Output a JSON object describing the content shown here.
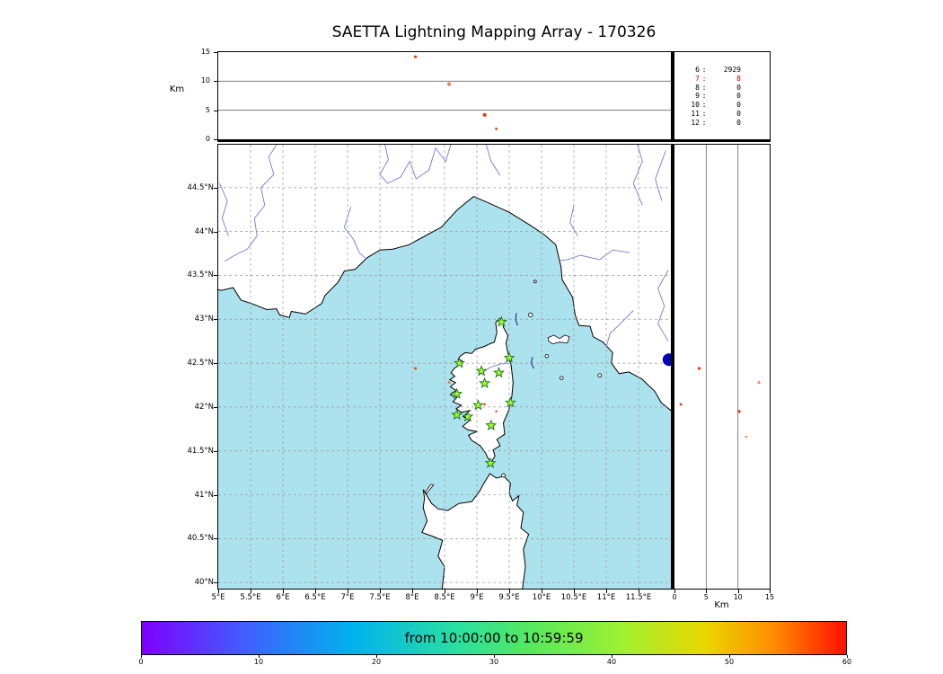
{
  "title": "SAETTA Lightning Mapping Array - 170326",
  "colors": {
    "sea": "#ACE2EE",
    "land": "#FFFFFF",
    "coast": "#000000",
    "river": "#7878D8",
    "grid": "#999999",
    "station_fill": "#A0FB2E",
    "station_edge": "#1E701E"
  },
  "axes": {
    "alt_label": "Km",
    "alt_ticks": [
      0,
      5,
      10,
      15
    ],
    "lon_ticks": [
      {
        "v": 5,
        "t": "5°E"
      },
      {
        "v": 5.5,
        "t": "5.5°E"
      },
      {
        "v": 6,
        "t": "6°E"
      },
      {
        "v": 6.5,
        "t": "6.5°E"
      },
      {
        "v": 7,
        "t": "7°E"
      },
      {
        "v": 7.5,
        "t": "7.5°E"
      },
      {
        "v": 8,
        "t": "8°E"
      },
      {
        "v": 8.5,
        "t": "8.5°E"
      },
      {
        "v": 9,
        "t": "9°E"
      },
      {
        "v": 9.5,
        "t": "9.5°E"
      },
      {
        "v": 10,
        "t": "10°E"
      },
      {
        "v": 10.5,
        "t": "10.5°E"
      },
      {
        "v": 11,
        "t": "11°E"
      },
      {
        "v": 11.5,
        "t": "11.5°E"
      }
    ],
    "lat_ticks": [
      {
        "v": 40,
        "t": "40°N"
      },
      {
        "v": 40.5,
        "t": "40.5°N"
      },
      {
        "v": 41,
        "t": "41°N"
      },
      {
        "v": 41.5,
        "t": "41.5°N"
      },
      {
        "v": 42,
        "t": "42°N"
      },
      {
        "v": 42.5,
        "t": "42.5°N"
      },
      {
        "v": 43,
        "t": "43°N"
      },
      {
        "v": 43.5,
        "t": "43.5°N"
      },
      {
        "v": 44,
        "t": "44°N"
      },
      {
        "v": 44.5,
        "t": "44.5°N"
      }
    ]
  },
  "chart_data": [
    {
      "type": "scatter",
      "id": "alt_lon",
      "title": "altitude (km) vs longitude",
      "ylabel": "Km",
      "x_range": [
        5,
        12
      ],
      "y_range": [
        0,
        15
      ],
      "y_ticks": [
        0,
        5,
        10,
        15
      ],
      "gridlines_y": [
        5,
        10
      ],
      "points": [
        {
          "lon": 8.05,
          "alt": 14.2,
          "color": "#EE3311",
          "r": 1.6
        },
        {
          "lon": 8.57,
          "alt": 9.5,
          "color": "#FF7744",
          "r": 2.0
        },
        {
          "lon": 9.12,
          "alt": 4.2,
          "color": "#EE3311",
          "r": 2.0
        },
        {
          "lon": 9.3,
          "alt": 1.8,
          "color": "#EE3311",
          "r": 1.4
        }
      ]
    },
    {
      "type": "scatter",
      "id": "map",
      "title": "plan view map (Corsica region)",
      "x_range": [
        5,
        12
      ],
      "y_range": [
        39.93,
        44.99
      ],
      "grid": "dashed 0.5 degree",
      "stations": [
        [
          9.38,
          42.97
        ],
        [
          9.5,
          42.56
        ],
        [
          8.73,
          42.5
        ],
        [
          9.07,
          42.41
        ],
        [
          9.34,
          42.39
        ],
        [
          9.12,
          42.27
        ],
        [
          8.69,
          42.15
        ],
        [
          9.52,
          42.05
        ],
        [
          9.02,
          42.02
        ],
        [
          8.69,
          41.91
        ],
        [
          8.86,
          41.89
        ],
        [
          9.22,
          41.79
        ],
        [
          9.21,
          41.36
        ]
      ],
      "sources": [
        {
          "lon": 8.05,
          "lat": 42.44,
          "color": "#EE3311",
          "r": 1.4
        },
        {
          "lon": 8.57,
          "lat": 42.28,
          "color": "#FF7744",
          "r": 1.4
        },
        {
          "lon": 9.12,
          "lat": 42.03,
          "color": "#EE3311",
          "r": 1.2
        },
        {
          "lon": 9.3,
          "lat": 41.95,
          "color": "#EE3311",
          "r": 1.2
        }
      ],
      "streaks": [
        {
          "color": "#333399",
          "pts": [
            [
              9.61,
              43.07
            ],
            [
              9.6,
              42.99
            ],
            [
              9.63,
              42.93
            ]
          ]
        },
        {
          "color": "#333399",
          "pts": [
            [
              9.86,
              42.57
            ],
            [
              9.84,
              42.5
            ],
            [
              9.88,
              42.44
            ]
          ]
        }
      ],
      "blue_marker": {
        "lon": 11.97,
        "lat": 42.54,
        "r": 7,
        "color": "#0000BB"
      }
    },
    {
      "type": "scatter",
      "id": "alt_lat",
      "title": "altitude (km) vs latitude",
      "xlabel": "Km",
      "x_range": [
        0,
        15
      ],
      "x_ticks": [
        0,
        5,
        10,
        15
      ],
      "gridlines_x": [
        5,
        10
      ],
      "points": [
        {
          "alt": 3.9,
          "lat": 42.44,
          "color": "#EE3311",
          "r": 1.6
        },
        {
          "alt": 13.3,
          "lat": 42.28,
          "color": "#FF8866",
          "r": 1.6
        },
        {
          "alt": 1.0,
          "lat": 42.03,
          "color": "#EE3311",
          "r": 1.4
        },
        {
          "alt": 10.2,
          "lat": 41.95,
          "color": "#EE3311",
          "r": 1.6
        },
        {
          "alt": 11.3,
          "lat": 41.66,
          "color": "#FF6644",
          "r": 1.2
        }
      ]
    },
    {
      "type": "table",
      "id": "counts",
      "title": "counts per altitude bin",
      "rows": [
        {
          "k": "6",
          "v": "2929",
          "red": false
        },
        {
          "k": "7",
          "v": "8",
          "red": true
        },
        {
          "k": "8",
          "v": "0",
          "red": false
        },
        {
          "k": "9",
          "v": "0",
          "red": false
        },
        {
          "k": "10",
          "v": "0",
          "red": false
        },
        {
          "k": "11",
          "v": "0",
          "red": false
        },
        {
          "k": "12",
          "v": "0",
          "red": false
        }
      ]
    },
    {
      "type": "colorbar",
      "id": "time_colorbar",
      "label": "from 10:00:00 to 10:59:59",
      "range": [
        0,
        60
      ],
      "ticks": [
        0,
        10,
        20,
        30,
        40,
        50,
        60
      ],
      "stops": [
        {
          "c": "#7F00FF",
          "p": 0
        },
        {
          "c": "#3F60FF",
          "p": 15
        },
        {
          "c": "#00B2EE",
          "p": 30
        },
        {
          "c": "#2BE0A0",
          "p": 45
        },
        {
          "c": "#55E860",
          "p": 55
        },
        {
          "c": "#9EF032",
          "p": 68
        },
        {
          "c": "#E8D800",
          "p": 80
        },
        {
          "c": "#FF8A00",
          "p": 90
        },
        {
          "c": "#FF1000",
          "p": 100
        }
      ]
    }
  ],
  "geo": {
    "mainland": [
      [
        4.9,
        43.35
      ],
      [
        5.05,
        43.33
      ],
      [
        5.23,
        43.36
      ],
      [
        5.35,
        43.22
      ],
      [
        5.55,
        43.17
      ],
      [
        5.75,
        43.11
      ],
      [
        5.9,
        43.12
      ],
      [
        5.95,
        43.05
      ],
      [
        6.1,
        43.02
      ],
      [
        6.13,
        43.09
      ],
      [
        6.35,
        43.06
      ],
      [
        6.6,
        43.18
      ],
      [
        6.65,
        43.27
      ],
      [
        6.85,
        43.42
      ],
      [
        6.95,
        43.55
      ],
      [
        7.12,
        43.57
      ],
      [
        7.3,
        43.7
      ],
      [
        7.5,
        43.79
      ],
      [
        7.7,
        43.8
      ],
      [
        7.95,
        43.85
      ],
      [
        8.2,
        43.95
      ],
      [
        8.45,
        44.05
      ],
      [
        8.7,
        44.25
      ],
      [
        8.95,
        44.4
      ],
      [
        9.2,
        44.32
      ],
      [
        9.5,
        44.22
      ],
      [
        9.85,
        44.06
      ],
      [
        10.05,
        43.96
      ],
      [
        10.22,
        43.85
      ],
      [
        10.3,
        43.6
      ],
      [
        10.32,
        43.45
      ],
      [
        10.48,
        43.25
      ],
      [
        10.52,
        43.05
      ],
      [
        10.58,
        42.93
      ],
      [
        10.75,
        42.92
      ],
      [
        10.8,
        42.8
      ],
      [
        10.95,
        42.74
      ],
      [
        11.1,
        42.62
      ],
      [
        11.08,
        42.5
      ],
      [
        11.2,
        42.38
      ],
      [
        11.35,
        42.4
      ],
      [
        11.55,
        42.32
      ],
      [
        11.75,
        42.18
      ],
      [
        11.85,
        42.05
      ],
      [
        12.1,
        41.9
      ],
      [
        12.35,
        41.78
      ],
      [
        12.35,
        45.3
      ],
      [
        4.9,
        45.3
      ]
    ],
    "corsica": [
      [
        9.35,
        43.01
      ],
      [
        9.29,
        42.96
      ],
      [
        9.31,
        42.85
      ],
      [
        9.27,
        42.74
      ],
      [
        9.2,
        42.72
      ],
      [
        9.12,
        42.69
      ],
      [
        8.98,
        42.66
      ],
      [
        8.92,
        42.61
      ],
      [
        8.82,
        42.62
      ],
      [
        8.74,
        42.58
      ],
      [
        8.71,
        42.54
      ],
      [
        8.77,
        42.53
      ],
      [
        8.73,
        42.48
      ],
      [
        8.65,
        42.44
      ],
      [
        8.6,
        42.39
      ],
      [
        8.66,
        42.35
      ],
      [
        8.58,
        42.31
      ],
      [
        8.67,
        42.28
      ],
      [
        8.59,
        42.23
      ],
      [
        8.68,
        42.19
      ],
      [
        8.59,
        42.14
      ],
      [
        8.69,
        42.11
      ],
      [
        8.63,
        42.06
      ],
      [
        8.76,
        42.02
      ],
      [
        8.68,
        41.98
      ],
      [
        8.76,
        41.94
      ],
      [
        8.89,
        41.96
      ],
      [
        8.79,
        41.89
      ],
      [
        8.89,
        41.85
      ],
      [
        8.78,
        41.78
      ],
      [
        8.86,
        41.74
      ],
      [
        9.0,
        41.72
      ],
      [
        8.87,
        41.68
      ],
      [
        8.92,
        41.62
      ],
      [
        9.05,
        41.56
      ],
      [
        9.13,
        41.48
      ],
      [
        9.17,
        41.42
      ],
      [
        9.22,
        41.37
      ],
      [
        9.28,
        41.44
      ],
      [
        9.25,
        41.51
      ],
      [
        9.36,
        41.56
      ],
      [
        9.31,
        41.63
      ],
      [
        9.43,
        41.69
      ],
      [
        9.41,
        41.82
      ],
      [
        9.49,
        41.96
      ],
      [
        9.54,
        42.12
      ],
      [
        9.56,
        42.28
      ],
      [
        9.53,
        42.47
      ],
      [
        9.47,
        42.65
      ],
      [
        9.45,
        42.73
      ],
      [
        9.48,
        42.81
      ],
      [
        9.41,
        42.91
      ],
      [
        9.4,
        42.98
      ]
    ],
    "sardinia": [
      [
        8.46,
        39.9
      ],
      [
        8.5,
        40.18
      ],
      [
        8.4,
        40.3
      ],
      [
        8.47,
        40.48
      ],
      [
        8.3,
        40.53
      ],
      [
        8.15,
        40.57
      ],
      [
        8.23,
        40.7
      ],
      [
        8.17,
        40.85
      ],
      [
        8.19,
        40.96
      ],
      [
        8.17,
        41.06
      ],
      [
        8.3,
        40.9
      ],
      [
        8.4,
        40.84
      ],
      [
        8.55,
        40.82
      ],
      [
        8.72,
        40.9
      ],
      [
        8.92,
        40.92
      ],
      [
        9.05,
        41.05
      ],
      [
        9.1,
        41.12
      ],
      [
        9.2,
        41.24
      ],
      [
        9.3,
        41.19
      ],
      [
        9.42,
        41.21
      ],
      [
        9.52,
        41.13
      ],
      [
        9.5,
        41.02
      ],
      [
        9.55,
        40.93
      ],
      [
        9.65,
        40.99
      ],
      [
        9.62,
        40.88
      ],
      [
        9.72,
        40.8
      ],
      [
        9.68,
        40.62
      ],
      [
        9.8,
        40.55
      ],
      [
        9.72,
        40.38
      ],
      [
        9.75,
        40.18
      ],
      [
        9.7,
        39.9
      ]
    ],
    "islands": [
      {
        "name": "elba",
        "pts": [
          [
            10.1,
            42.79
          ],
          [
            10.19,
            42.82
          ],
          [
            10.28,
            42.78
          ],
          [
            10.36,
            42.82
          ],
          [
            10.43,
            42.8
          ],
          [
            10.4,
            42.73
          ],
          [
            10.28,
            42.74
          ],
          [
            10.17,
            42.72
          ],
          [
            10.11,
            42.75
          ]
        ]
      },
      {
        "name": "asinara",
        "pts": [
          [
            8.22,
            41.01
          ],
          [
            8.27,
            41.06
          ],
          [
            8.33,
            41.11
          ],
          [
            8.29,
            41.12
          ],
          [
            8.24,
            41.07
          ],
          [
            8.2,
            41.03
          ]
        ]
      },
      {
        "name": "capraia",
        "c": [
          9.83,
          43.05
        ],
        "r": 2.2
      },
      {
        "name": "gorgona",
        "c": [
          9.9,
          43.43
        ],
        "r": 1.5
      },
      {
        "name": "pianosa",
        "c": [
          10.08,
          42.58
        ],
        "r": 1.8
      },
      {
        "name": "montecristo",
        "c": [
          10.31,
          42.33
        ],
        "r": 1.8
      },
      {
        "name": "giglio",
        "c": [
          10.9,
          42.36
        ],
        "r": 2
      },
      {
        "name": "maddalena",
        "c": [
          9.41,
          41.22
        ],
        "r": 2
      }
    ],
    "rivers": [
      [
        [
          5.95,
          45.05
        ],
        [
          5.78,
          44.85
        ],
        [
          5.86,
          44.65
        ],
        [
          5.66,
          44.5
        ],
        [
          5.72,
          44.3
        ],
        [
          5.56,
          44.15
        ],
        [
          5.6,
          43.95
        ],
        [
          5.45,
          43.8
        ],
        [
          5.28,
          43.74
        ],
        [
          5.1,
          43.66
        ]
      ],
      [
        [
          5.02,
          44.55
        ],
        [
          5.14,
          44.35
        ],
        [
          5.06,
          44.15
        ],
        [
          5.16,
          43.95
        ]
      ],
      [
        [
          7.05,
          44.28
        ],
        [
          6.95,
          44.05
        ],
        [
          7.1,
          43.9
        ],
        [
          7.18,
          43.76
        ],
        [
          7.27,
          43.7
        ]
      ],
      [
        [
          7.56,
          45.05
        ],
        [
          7.63,
          44.82
        ],
        [
          7.5,
          44.65
        ],
        [
          7.62,
          44.55
        ],
        [
          7.82,
          44.62
        ],
        [
          7.96,
          44.8
        ],
        [
          8.06,
          44.6
        ],
        [
          8.26,
          44.7
        ],
        [
          8.36,
          44.95
        ],
        [
          8.52,
          44.8
        ],
        [
          8.62,
          45.05
        ]
      ],
      [
        [
          9.12,
          45.05
        ],
        [
          9.22,
          44.8
        ],
        [
          9.36,
          44.64
        ]
      ],
      [
        [
          10.5,
          44.3
        ],
        [
          10.44,
          44.1
        ],
        [
          10.56,
          43.95
        ]
      ],
      [
        [
          11.36,
          43.76
        ],
        [
          11.1,
          43.79
        ],
        [
          10.9,
          43.68
        ],
        [
          10.6,
          43.73
        ],
        [
          10.4,
          43.68
        ],
        [
          10.28,
          43.67
        ]
      ],
      [
        [
          11.96,
          43.56
        ],
        [
          11.8,
          43.35
        ],
        [
          11.9,
          43.15
        ],
        [
          11.8,
          42.95
        ],
        [
          11.96,
          42.75
        ]
      ],
      [
        [
          11.42,
          43.1
        ],
        [
          11.22,
          42.95
        ],
        [
          11.06,
          42.84
        ],
        [
          11.0,
          42.68
        ]
      ],
      [
        [
          11.46,
          45.05
        ],
        [
          11.56,
          44.8
        ],
        [
          11.42,
          44.55
        ],
        [
          11.56,
          44.3
        ]
      ],
      [
        [
          11.92,
          44.92
        ],
        [
          11.76,
          44.6
        ],
        [
          11.86,
          44.35
        ]
      ],
      [
        [
          9.02,
          42.36
        ],
        [
          9.2,
          42.45
        ],
        [
          9.36,
          42.49
        ],
        [
          9.51,
          42.5
        ]
      ]
    ]
  }
}
